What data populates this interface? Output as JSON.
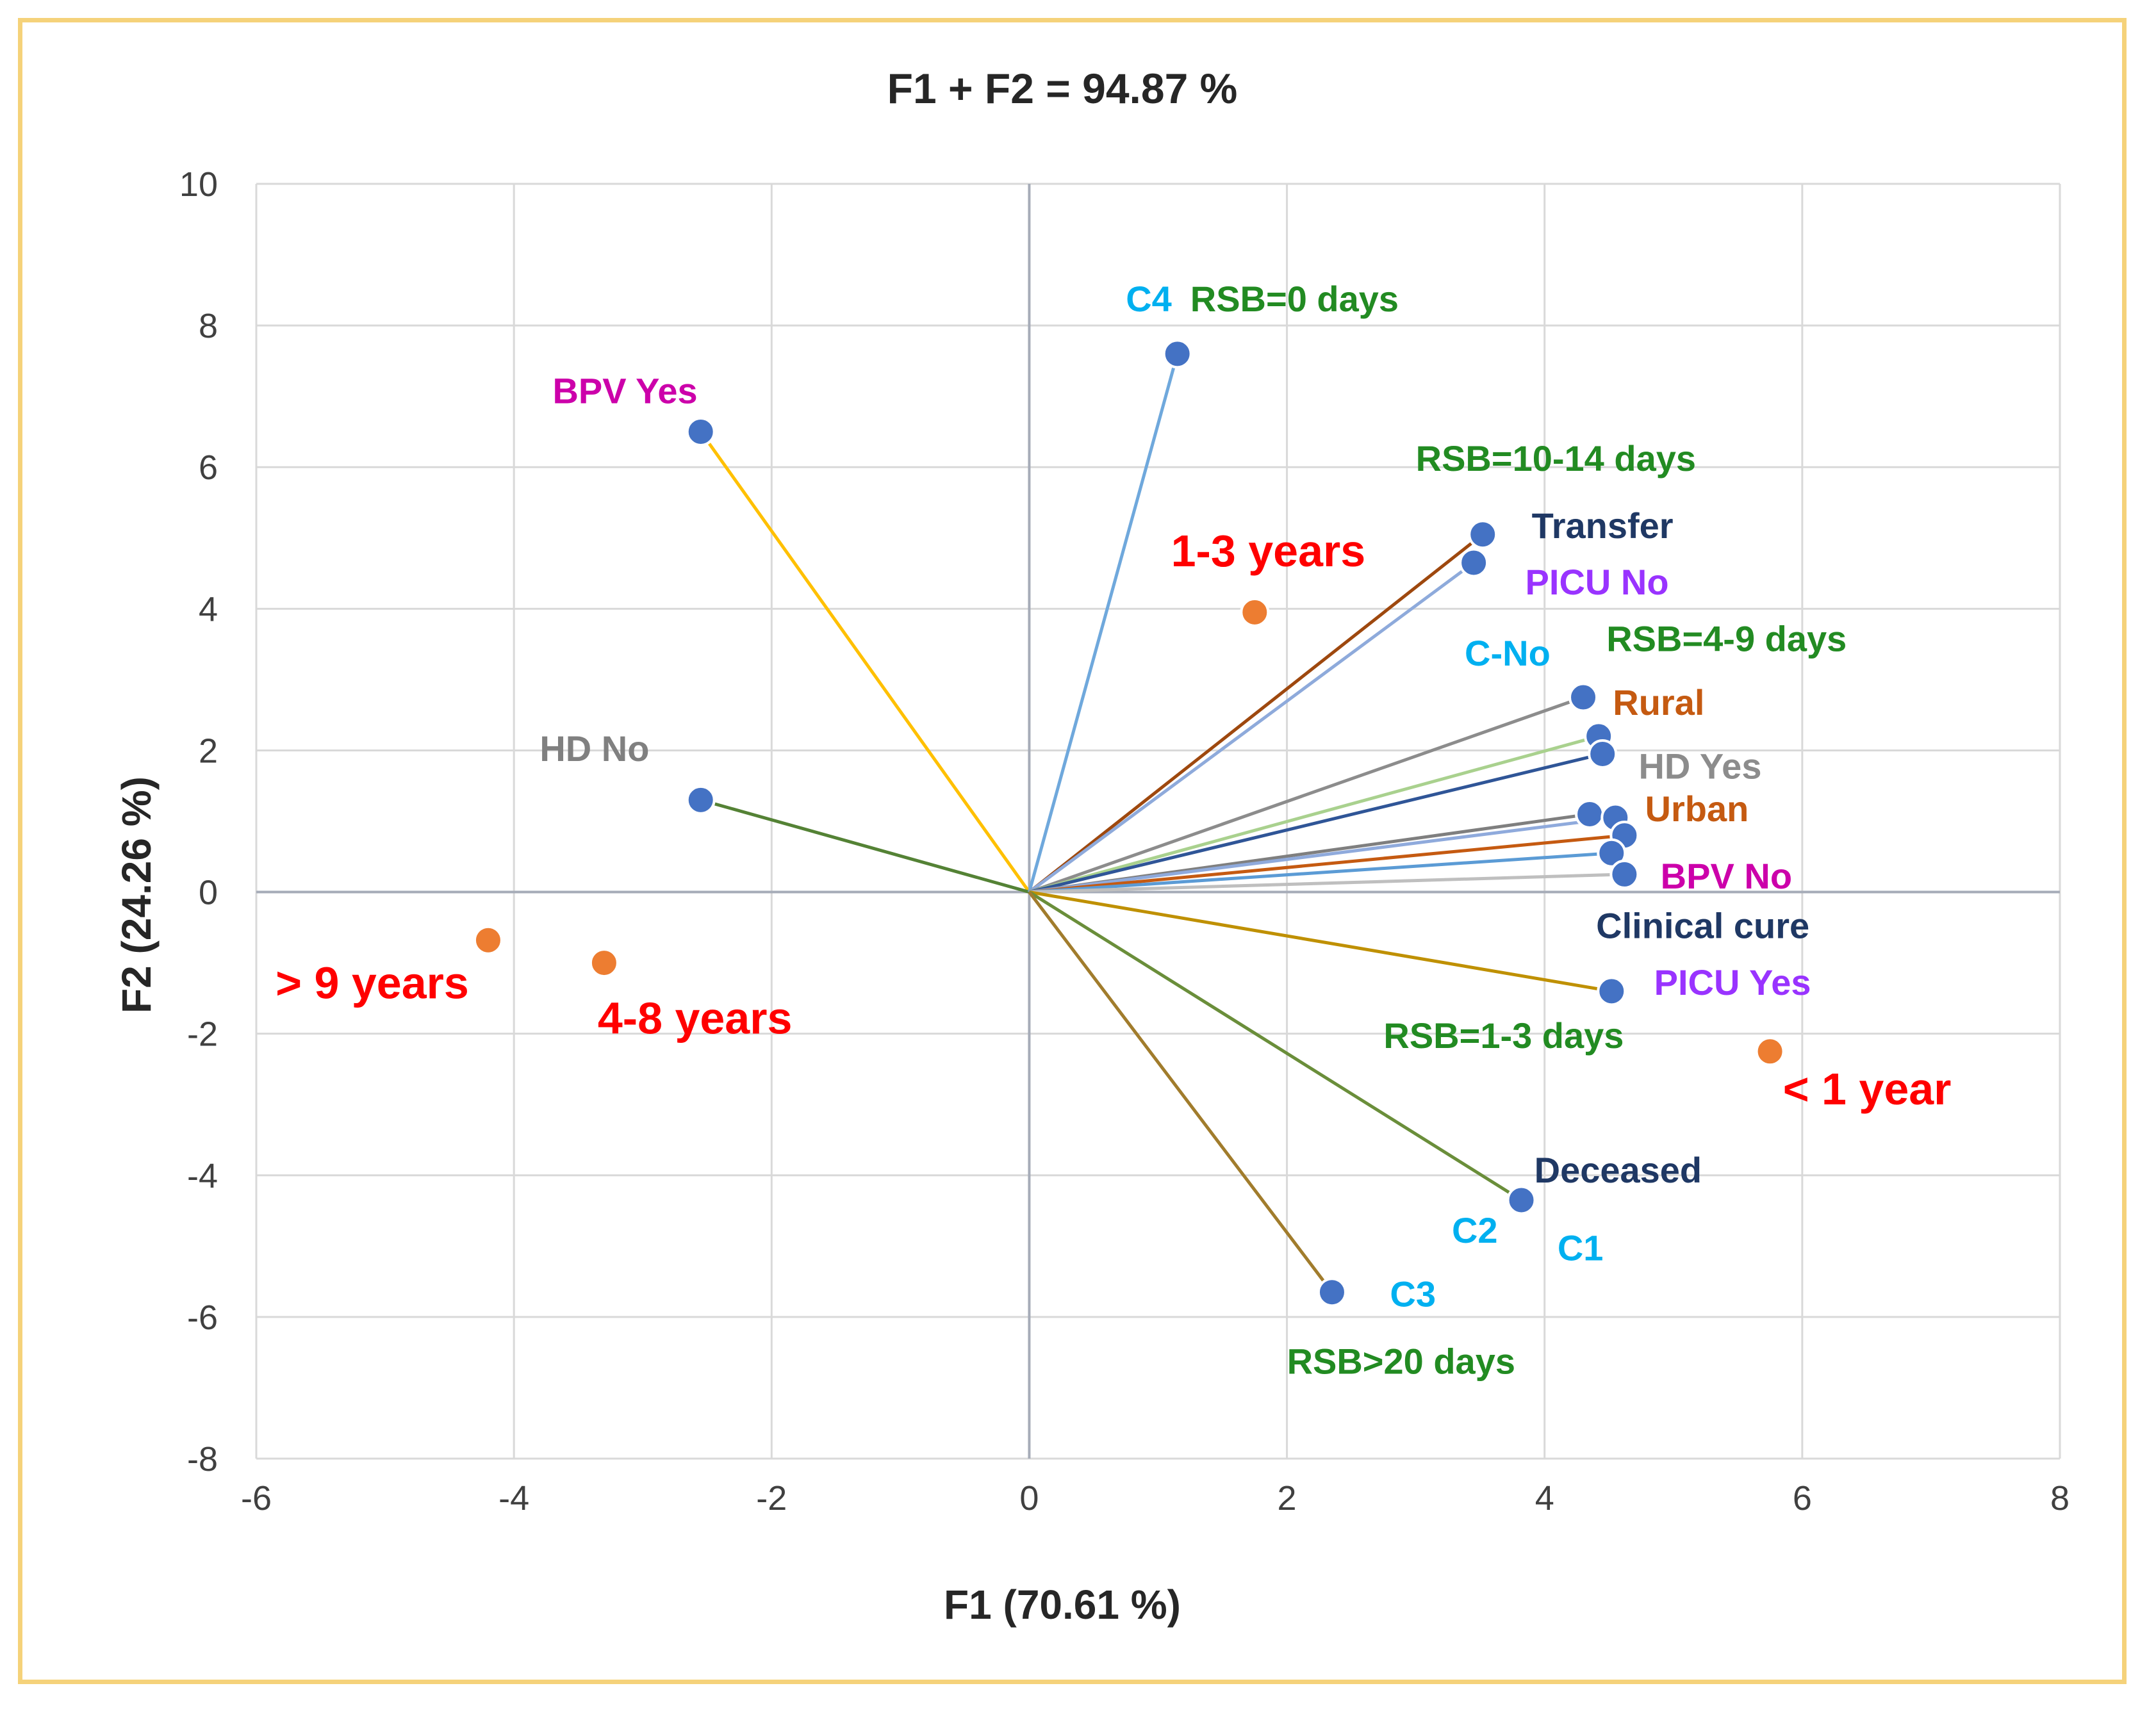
{
  "chart_data": {
    "type": "scatter",
    "title": "F1 + F2 = 94.87 %",
    "xlabel": "F1 (70.61 %)",
    "ylabel": "F2 (24.26 %)",
    "xlim": [
      -6,
      8
    ],
    "ylim": [
      -8,
      10
    ],
    "xticks": [
      "-6",
      "-4",
      "-2",
      "0",
      "2",
      "4",
      "6",
      "8"
    ],
    "yticks": [
      "-8",
      "-6",
      "-4",
      "-2",
      "0",
      "2",
      "4",
      "6",
      "8",
      "10"
    ],
    "grid": true,
    "colors": {
      "variable_point": "#4472c4",
      "observation_point": "#ed7d31",
      "grid": "#d9d9d9",
      "zero_axis": "#a6acb8"
    },
    "vectors": [
      {
        "name": "BPV Yes",
        "x": -2.55,
        "y": 6.5,
        "color": "#ffc000"
      },
      {
        "name": "HD No",
        "x": -2.55,
        "y": 1.3,
        "color": "#548235"
      },
      {
        "name": "C4 / RSB=0 days",
        "x": 1.15,
        "y": 7.6,
        "color": "#6fa8dc"
      },
      {
        "name": "RSB=10-14 days / Transfer",
        "x": 3.52,
        "y": 5.05,
        "color": "#9e480e"
      },
      {
        "name": "PICU No",
        "x": 3.45,
        "y": 4.65,
        "color": "#8eaadb"
      },
      {
        "name": "C-No",
        "x": 4.3,
        "y": 2.75,
        "color": "#8c8c8c"
      },
      {
        "name": "RSB=4-9 days",
        "x": 4.42,
        "y": 2.2,
        "color": "#a9d18e"
      },
      {
        "name": "Rural",
        "x": 4.45,
        "y": 1.95,
        "color": "#2f5597"
      },
      {
        "name": "HD Yes",
        "x": 4.35,
        "y": 1.1,
        "color": "#7f7f7f"
      },
      {
        "name": "Urban",
        "x": 4.55,
        "y": 1.05,
        "color": "#8faadc"
      },
      {
        "name": "Urban",
        "x": 4.62,
        "y": 0.8,
        "color": "#c55a11"
      },
      {
        "name": "BPV No",
        "x": 4.52,
        "y": 0.55,
        "color": "#5b9bd5"
      },
      {
        "name": "Clinical cure",
        "x": 4.62,
        "y": 0.25,
        "color": "#bfbfbf"
      },
      {
        "name": "PICU Yes",
        "x": 4.52,
        "y": -1.4,
        "color": "#bf9000"
      },
      {
        "name": "Deceased / C1 / C2",
        "x": 3.82,
        "y": -4.35,
        "color": "#6a8e3a"
      },
      {
        "name": "C3 / RSB>20 days",
        "x": 2.35,
        "y": -5.65,
        "color": "#a17c2c"
      }
    ],
    "observations": [
      {
        "name": "1-3 years",
        "x": 1.75,
        "y": 3.95
      },
      {
        "name": "> 9 years",
        "x": -4.2,
        "y": -0.68
      },
      {
        "name": "4-8 years",
        "x": -3.3,
        "y": -1.0
      },
      {
        "name": "< 1 year",
        "x": 5.75,
        "y": -2.25
      }
    ],
    "labels": [
      {
        "text": "C4",
        "x": 0.75,
        "y": 8.2,
        "color": "#00b0f0",
        "size": "std"
      },
      {
        "text": "RSB=0 days",
        "x": 1.25,
        "y": 8.2,
        "color": "#228b22",
        "size": "std"
      },
      {
        "text": "BPV Yes",
        "x": -3.7,
        "y": 6.9,
        "color": "#cc00aa",
        "size": "std"
      },
      {
        "text": "RSB=10-14 days",
        "x": 3.0,
        "y": 5.95,
        "color": "#228b22",
        "size": "std"
      },
      {
        "text": "Transfer",
        "x": 3.9,
        "y": 5.0,
        "color": "#1f3864",
        "size": "std"
      },
      {
        "text": "1-3 years",
        "x": 1.1,
        "y": 4.6,
        "color": "#ff0000",
        "size": "big"
      },
      {
        "text": "PICU No",
        "x": 3.85,
        "y": 4.2,
        "color": "#9933ff",
        "size": "std"
      },
      {
        "text": "C-No",
        "x": 3.38,
        "y": 3.2,
        "color": "#00b0f0",
        "size": "std"
      },
      {
        "text": "RSB=4-9 days",
        "x": 4.48,
        "y": 3.4,
        "color": "#228b22",
        "size": "std"
      },
      {
        "text": "Rural",
        "x": 4.53,
        "y": 2.5,
        "color": "#c55a11",
        "size": "std"
      },
      {
        "text": "HD No",
        "x": -3.8,
        "y": 1.85,
        "color": "#808080",
        "size": "std"
      },
      {
        "text": "HD Yes",
        "x": 4.73,
        "y": 1.6,
        "color": "#8c8c8c",
        "size": "std"
      },
      {
        "text": "Urban",
        "x": 4.78,
        "y": 1.0,
        "color": "#c55a11",
        "size": "std"
      },
      {
        "text": "BPV No",
        "x": 4.9,
        "y": 0.05,
        "color": "#cc00aa",
        "size": "std"
      },
      {
        "text": "Clinical  cure",
        "x": 4.4,
        "y": -0.65,
        "color": "#1f3864",
        "size": "std"
      },
      {
        "text": "PICU Yes",
        "x": 4.85,
        "y": -1.45,
        "color": "#9933ff",
        "size": "std"
      },
      {
        "text": "> 9 years",
        "x": -5.85,
        "y": -1.5,
        "color": "#ff0000",
        "size": "big"
      },
      {
        "text": "4-8 years",
        "x": -3.35,
        "y": -2.0,
        "color": "#ff0000",
        "size": "big"
      },
      {
        "text": "RSB=1-3 days",
        "x": 2.75,
        "y": -2.2,
        "color": "#228b22",
        "size": "std"
      },
      {
        "text": "< 1 year",
        "x": 5.85,
        "y": -3.0,
        "color": "#ff0000",
        "size": "big"
      },
      {
        "text": "Deceased",
        "x": 3.92,
        "y": -4.1,
        "color": "#1f3864",
        "size": "std"
      },
      {
        "text": "C2",
        "x": 3.28,
        "y": -4.95,
        "color": "#00b0f0",
        "size": "std"
      },
      {
        "text": "C1",
        "x": 4.1,
        "y": -5.2,
        "color": "#00b0f0",
        "size": "std"
      },
      {
        "text": "C3",
        "x": 2.8,
        "y": -5.85,
        "color": "#00b0f0",
        "size": "std"
      },
      {
        "text": "RSB>20 days",
        "x": 2.0,
        "y": -6.8,
        "color": "#228b22",
        "size": "std"
      }
    ]
  }
}
